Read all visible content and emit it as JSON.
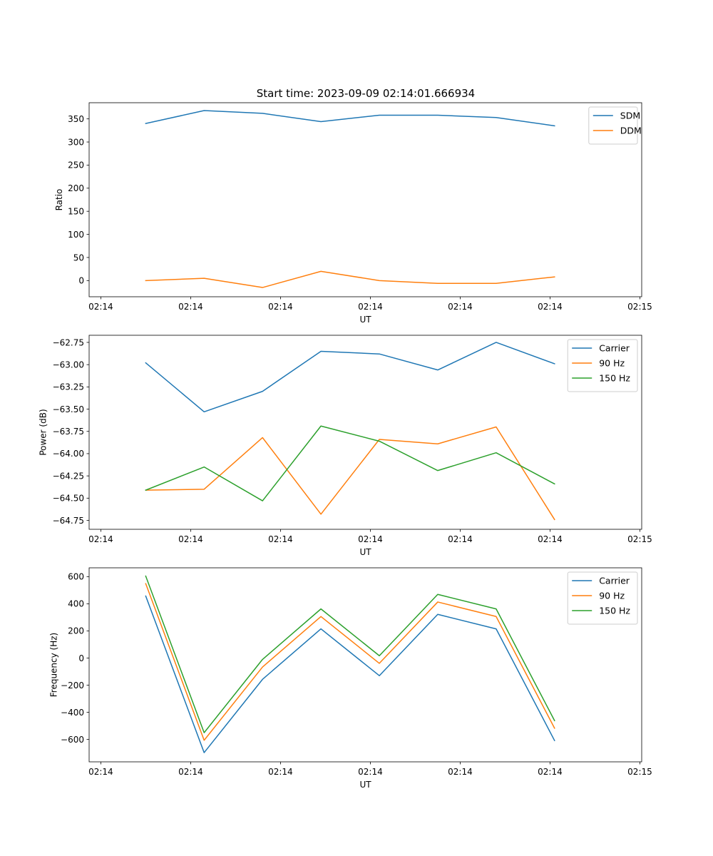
{
  "figure": {
    "title": "Start time: 2023-09-09 02:14:01.666934"
  },
  "chart_data": [
    {
      "type": "line",
      "title": "Start time: 2023-09-09 02:14:01.666934",
      "xlabel": "UT",
      "ylabel": "Ratio",
      "x_ticks": [
        "02:14",
        "02:14",
        "02:14",
        "02:14",
        "02:14",
        "02:14",
        "02:15"
      ],
      "x_tick_values": [
        0,
        1,
        2,
        3,
        4,
        5,
        6
      ],
      "x": [
        0.5,
        1.15,
        1.8,
        2.45,
        3.1,
        3.75,
        4.4,
        5.05
      ],
      "xlim": [
        -0.13,
        6.02
      ],
      "ylim": [
        -35,
        385
      ],
      "y_ticks": [
        0,
        50,
        100,
        150,
        200,
        250,
        300,
        350
      ],
      "legend": "top-right",
      "series": [
        {
          "name": "SDM",
          "color": "#1f77b4",
          "values": [
            340,
            368,
            362,
            344,
            358,
            358,
            353,
            335
          ]
        },
        {
          "name": "DDM",
          "color": "#ff7f0e",
          "values": [
            0,
            5,
            -15,
            20,
            0,
            -6,
            -6,
            8
          ]
        }
      ]
    },
    {
      "type": "line",
      "title": "",
      "xlabel": "UT",
      "ylabel": "Power (dB)",
      "x_ticks": [
        "02:14",
        "02:14",
        "02:14",
        "02:14",
        "02:14",
        "02:14",
        "02:15"
      ],
      "x_tick_values": [
        0,
        1,
        2,
        3,
        4,
        5,
        6
      ],
      "x": [
        0.5,
        1.15,
        1.8,
        2.45,
        3.1,
        3.75,
        4.4,
        5.05
      ],
      "xlim": [
        -0.13,
        6.02
      ],
      "ylim": [
        -64.85,
        -62.67
      ],
      "y_ticks": [
        -64.75,
        -64.5,
        -64.25,
        -64.0,
        -63.75,
        -63.5,
        -63.25,
        -63.0,
        -62.75
      ],
      "y_tick_labels": [
        "−64.75",
        "−64.50",
        "−64.25",
        "−64.00",
        "−63.75",
        "−63.50",
        "−63.25",
        "−63.00",
        "−62.75"
      ],
      "legend": "top-right",
      "series": [
        {
          "name": "Carrier",
          "color": "#1f77b4",
          "values": [
            -62.98,
            -63.53,
            -63.3,
            -62.85,
            -62.88,
            -63.06,
            -62.75,
            -62.99
          ]
        },
        {
          "name": "90 Hz",
          "color": "#ff7f0e",
          "values": [
            -64.41,
            -64.4,
            -63.82,
            -64.68,
            -63.84,
            -63.89,
            -63.7,
            -64.74
          ]
        },
        {
          "name": "150 Hz",
          "color": "#2ca02c",
          "values": [
            -64.41,
            -64.15,
            -64.53,
            -63.69,
            -63.86,
            -64.19,
            -63.99,
            -64.34
          ]
        }
      ]
    },
    {
      "type": "line",
      "title": "",
      "xlabel": "UT",
      "ylabel": "Frequency (Hz)",
      "x_ticks": [
        "02:14",
        "02:14",
        "02:14",
        "02:14",
        "02:14",
        "02:14",
        "02:15"
      ],
      "x_tick_values": [
        0,
        1,
        2,
        3,
        4,
        5,
        6
      ],
      "x": [
        0.5,
        1.15,
        1.8,
        2.45,
        3.1,
        3.75,
        4.4,
        5.05
      ],
      "xlim": [
        -0.13,
        6.02
      ],
      "ylim": [
        -765,
        665
      ],
      "y_ticks": [
        -600,
        -400,
        -200,
        0,
        200,
        400,
        600
      ],
      "y_tick_labels": [
        "−600",
        "−400",
        "−200",
        "0",
        "200",
        "400",
        "600"
      ],
      "legend": "top-right",
      "series": [
        {
          "name": "Carrier",
          "color": "#1f77b4",
          "values": [
            457,
            -697,
            -157,
            215,
            -130,
            322,
            215,
            -608
          ]
        },
        {
          "name": "90 Hz",
          "color": "#ff7f0e",
          "values": [
            548,
            -606,
            -66,
            306,
            -39,
            413,
            306,
            -517
          ]
        },
        {
          "name": "150 Hz",
          "color": "#2ca02c",
          "values": [
            604,
            -550,
            -10,
            362,
            17,
            469,
            362,
            -461
          ]
        }
      ]
    }
  ]
}
